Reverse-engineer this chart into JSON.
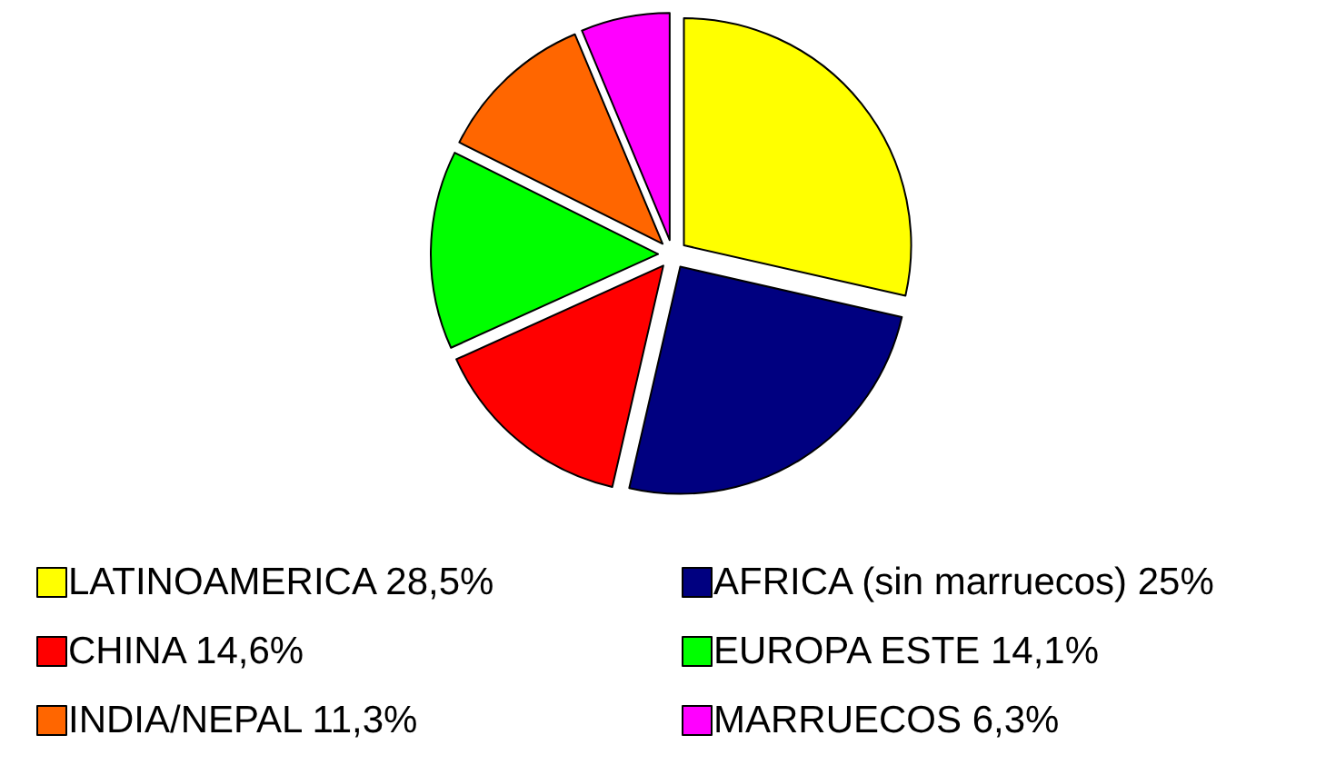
{
  "chart_data": {
    "type": "pie",
    "categories": [
      "LATINOAMERICA",
      "AFRICA (sin marruecos)",
      "CHINA",
      "EUROPA ESTE",
      "INDIA/NEPAL",
      "MARRUECOS"
    ],
    "values": [
      28.5,
      25,
      14.6,
      14.1,
      11.3,
      6.3
    ],
    "value_labels": [
      "28,5%",
      "25%",
      "14,6%",
      "14,1%",
      "11,3%",
      "6,3%"
    ],
    "colors": [
      "#ffff00",
      "#000080",
      "#ff0000",
      "#00ff00",
      "#ff6600",
      "#ff00ff"
    ],
    "legend": "bottom"
  }
}
